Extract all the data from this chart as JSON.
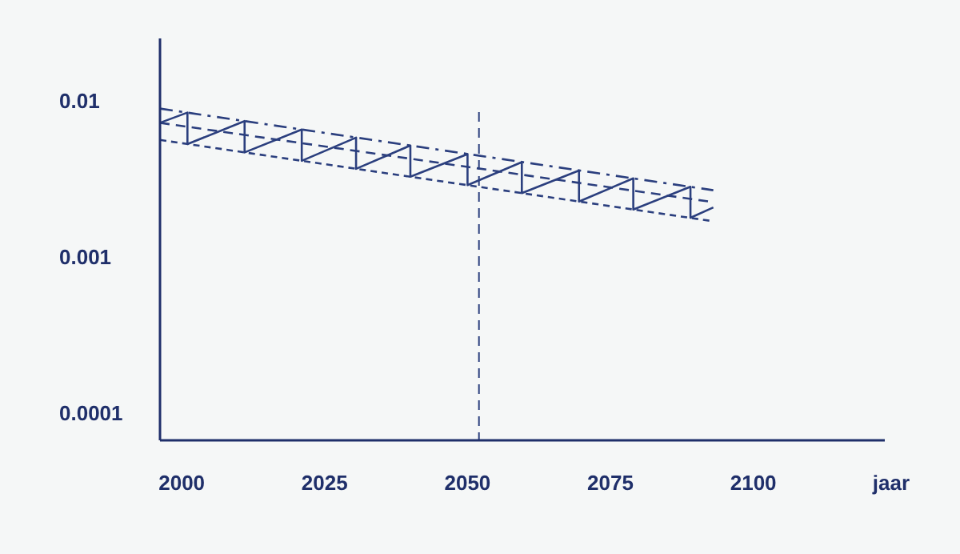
{
  "chart_data": {
    "type": "line",
    "xlabel": "jaar",
    "log": "y",
    "grid": false,
    "marker": "none",
    "xlim": [
      1996.2,
      2123
    ],
    "xticks": [
      2000,
      2025,
      2050,
      2075,
      2100
    ],
    "ylim": [
      6.7e-05,
      0.025
    ],
    "yticks": [
      0.01,
      0.001,
      0.0001
    ],
    "ref_lines": [
      {
        "axis": "x",
        "value": 2052,
        "line_style": "dashed",
        "color": "#2b3f7e"
      }
    ],
    "series": [
      {
        "color": "#2b3f7e",
        "line_style": "solid",
        "x": [
          1996.2,
          2001,
          2001,
          2011,
          2011,
          2021,
          2021,
          2030.5,
          2030.5,
          2040,
          2040,
          2050,
          2050,
          2059.5,
          2059.5,
          2069.5,
          2069.5,
          2079,
          2079,
          2089,
          2089,
          2093
        ],
        "values": [
          0.00721,
          0.00838,
          0.00527,
          0.0074,
          0.00466,
          0.00653,
          0.00412,
          0.0058,
          0.00366,
          0.00516,
          0.00326,
          0.00455,
          0.00288,
          0.00404,
          0.00256,
          0.00357,
          0.00226,
          0.00318,
          0.00201,
          0.00281,
          0.00178,
          0.00207
        ]
      },
      {
        "color": "#2b3f7e",
        "line_style": "dashdot",
        "x": [
          1996.2,
          2093
        ],
        "values": [
          0.00889,
          0.00267
        ]
      },
      {
        "color": "#2b3f7e",
        "line_style": "dashed",
        "x": [
          1996.2,
          2093
        ],
        "values": [
          0.00721,
          0.00224
        ]
      },
      {
        "color": "#2b3f7e",
        "line_style": "dotted",
        "x": [
          1996.2,
          2093
        ],
        "values": [
          0.0056,
          0.00169
        ]
      }
    ]
  }
}
